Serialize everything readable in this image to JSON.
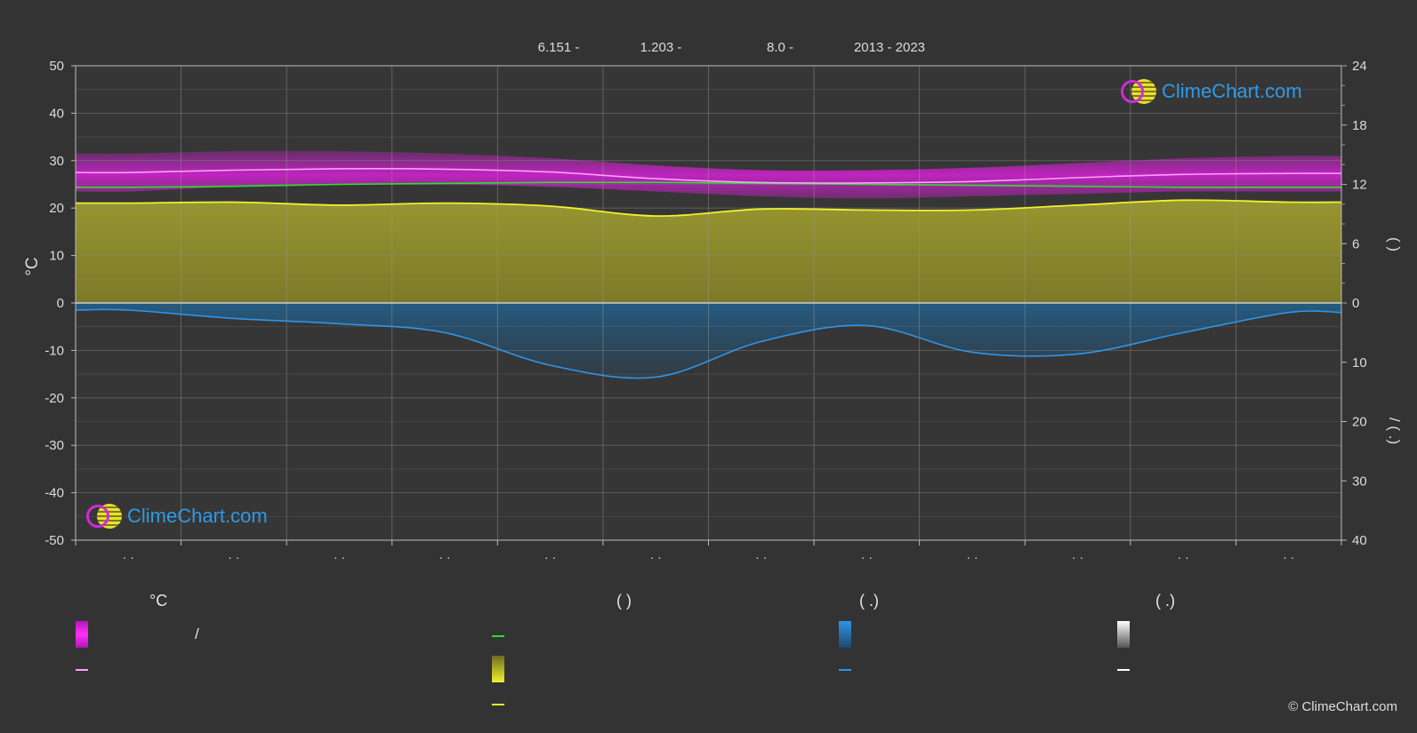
{
  "header": {
    "items": [
      "6.151 -",
      "1.203 -",
      "8.0 -",
      "2013 - 2023"
    ]
  },
  "axes": {
    "left_unit": "°C",
    "left_ticks": [
      "50",
      "40",
      "30",
      "20",
      "10",
      "0",
      "-10",
      "-20",
      "-30",
      "-40",
      "-50"
    ],
    "right_top_ticks": [
      "24",
      "18",
      "12",
      "6",
      "0"
    ],
    "right_bottom_ticks": [
      "10",
      "20",
      "30",
      "40"
    ],
    "right_label_top": "(   )",
    "right_label_bottom": "/ (   .)",
    "month_ticks": [
      "· ·",
      "· ·",
      "· ·",
      "· ·",
      "· ·",
      "· ·",
      "· ·",
      "· ·",
      "· ·",
      "· ·",
      "· ·",
      "· ·"
    ]
  },
  "logo": {
    "text": "ClimeChart.com"
  },
  "legend": {
    "col1_head": "°C",
    "col1_row1": "/",
    "col2_head": "(        )",
    "col3_head": "(   .)",
    "col4_head": "(   .)"
  },
  "copyright": "© ClimeChart.com",
  "colors": {
    "background": "#333333",
    "temp_band": "#d21ed2",
    "temp_mean": "#ff9dff",
    "daylight": "#2ee02e",
    "sunshine_fill": "#9c9a2a",
    "sunshine_line": "#f0f030",
    "precip_fill": "#1e6aa0",
    "precip_line": "#2e95e8",
    "snow": "#ffffff"
  },
  "chart_data": {
    "type": "area",
    "x": [
      "1",
      "2",
      "3",
      "4",
      "5",
      "6",
      "7",
      "8",
      "9",
      "10",
      "11",
      "12"
    ],
    "ylim_left": [
      -50,
      50
    ],
    "ylim_right_hours": [
      0,
      24
    ],
    "ylim_right_precip_mm": [
      0,
      40
    ],
    "grid": true,
    "series": [
      {
        "values": [
          31.5,
          32.0,
          32.0,
          31.5,
          30.5,
          29.0,
          28.0,
          28.0,
          28.5,
          29.5,
          30.5,
          31.0
        ]
      },
      {
        "values": [
          23.5,
          24.5,
          25.0,
          25.0,
          24.5,
          23.5,
          22.5,
          22.0,
          22.5,
          23.0,
          23.5,
          23.5
        ]
      },
      {
        "values": [
          27.5,
          28.0,
          28.3,
          28.2,
          27.6,
          26.2,
          25.4,
          25.3,
          25.6,
          26.4,
          27.1,
          27.3
        ]
      },
      {
        "values": [
          11.7,
          11.8,
          12.0,
          12.1,
          12.2,
          12.2,
          12.1,
          12.0,
          11.9,
          11.8,
          11.7,
          11.7
        ]
      },
      {
        "values": [
          10.1,
          10.2,
          9.9,
          10.1,
          9.8,
          8.8,
          9.5,
          9.4,
          9.4,
          9.9,
          10.4,
          10.2
        ]
      },
      {
        "values": [
          1.2,
          2.6,
          3.5,
          5.0,
          10.5,
          12.5,
          6.5,
          3.8,
          8.3,
          8.6,
          5.0,
          1.6
        ]
      }
    ]
  }
}
